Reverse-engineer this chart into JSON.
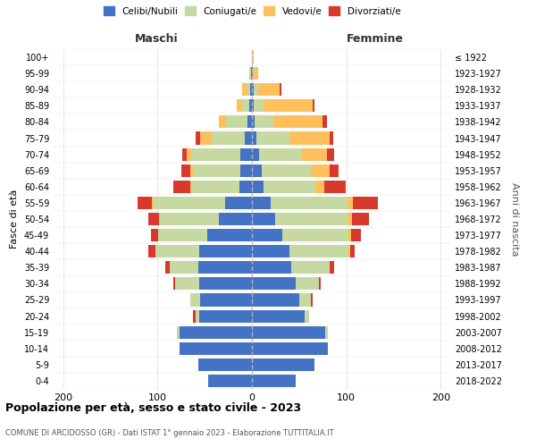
{
  "age_groups_display": [
    "0-4",
    "5-9",
    "10-14",
    "15-19",
    "20-24",
    "25-29",
    "30-34",
    "35-39",
    "40-44",
    "45-49",
    "50-54",
    "55-59",
    "60-64",
    "65-69",
    "70-74",
    "75-79",
    "80-84",
    "85-89",
    "90-94",
    "95-99",
    "100+"
  ],
  "birth_years_display": [
    "2018-2022",
    "2013-2017",
    "2008-2012",
    "2003-2007",
    "1998-2002",
    "1993-1997",
    "1988-1992",
    "1983-1987",
    "1978-1982",
    "1973-1977",
    "1968-1972",
    "1963-1967",
    "1958-1962",
    "1953-1957",
    "1948-1952",
    "1943-1947",
    "1938-1942",
    "1933-1937",
    "1928-1932",
    "1923-1927",
    "≤ 1922"
  ],
  "maschi": {
    "celibi": [
      46,
      57,
      77,
      77,
      56,
      55,
      56,
      57,
      56,
      47,
      35,
      28,
      13,
      12,
      12,
      8,
      5,
      3,
      2,
      1,
      0
    ],
    "coniugati": [
      0,
      0,
      0,
      2,
      4,
      10,
      25,
      30,
      46,
      52,
      62,
      76,
      50,
      50,
      52,
      35,
      22,
      8,
      3,
      1,
      0
    ],
    "vedovi": [
      0,
      0,
      0,
      0,
      0,
      0,
      0,
      0,
      0,
      0,
      1,
      2,
      2,
      3,
      5,
      12,
      8,
      5,
      5,
      1,
      0
    ],
    "divorziati": [
      0,
      0,
      0,
      0,
      2,
      0,
      2,
      5,
      8,
      8,
      12,
      15,
      18,
      10,
      5,
      5,
      0,
      0,
      0,
      0,
      0
    ]
  },
  "femmine": {
    "nubili": [
      46,
      66,
      80,
      78,
      56,
      50,
      46,
      42,
      40,
      32,
      25,
      20,
      12,
      10,
      8,
      5,
      3,
      2,
      2,
      1,
      0
    ],
    "coniugate": [
      0,
      0,
      0,
      2,
      5,
      12,
      25,
      40,
      62,
      70,
      76,
      82,
      55,
      52,
      45,
      35,
      20,
      10,
      5,
      1,
      0
    ],
    "vedove": [
      0,
      0,
      0,
      0,
      0,
      0,
      0,
      0,
      2,
      3,
      5,
      5,
      10,
      20,
      26,
      42,
      52,
      52,
      22,
      5,
      2
    ],
    "divorziate": [
      0,
      0,
      0,
      0,
      0,
      2,
      2,
      5,
      5,
      10,
      18,
      26,
      22,
      10,
      8,
      4,
      4,
      2,
      2,
      0,
      0
    ]
  },
  "colors": {
    "celibi": "#4472c4",
    "coniugati": "#c5d9a0",
    "vedovi": "#ffc05b",
    "divorziati": "#d9392d"
  },
  "xlim": 210,
  "title": "Popolazione per età, sesso e stato civile - 2023",
  "subtitle": "COMUNE DI ARCIDOSSO (GR) - Dati ISTAT 1° gennaio 2023 - Elaborazione TUTTITALIA.IT",
  "ylabel": "Fasce di età",
  "y2label": "Anni di nascita",
  "maschi_label": "Maschi",
  "femmine_label": "Femmine",
  "legend_labels": [
    "Celibi/Nubili",
    "Coniugati/e",
    "Vedovi/e",
    "Divorziati/e"
  ],
  "bg_color": "#ffffff",
  "grid_color": "#c8c8c8"
}
